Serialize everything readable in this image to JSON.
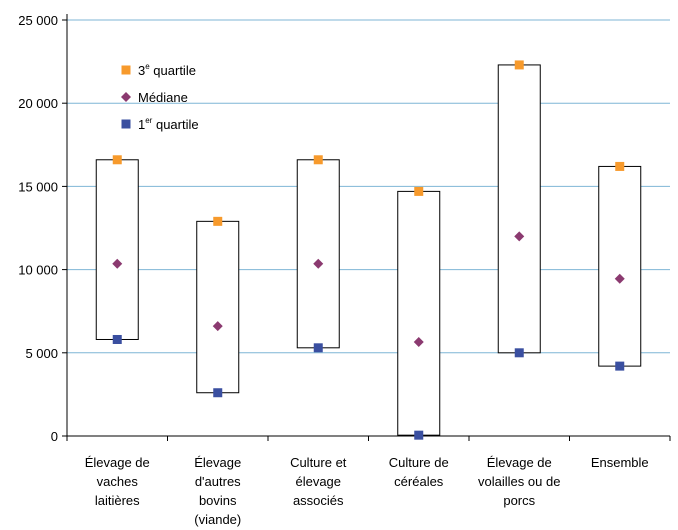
{
  "chart_data": {
    "type": "box",
    "categories": [
      [
        "Élevage de",
        "vaches",
        "laitières"
      ],
      [
        "Élevage",
        "d'autres",
        "bovins",
        "(viande)"
      ],
      [
        "Culture et",
        "élevage",
        "associés"
      ],
      [
        "Culture de",
        "céréales"
      ],
      [
        "Élevage de",
        "volailles ou de",
        "porcs"
      ],
      [
        "Ensemble"
      ]
    ],
    "series": [
      {
        "name": "3e quartile",
        "marker": "square",
        "color": "#f79a2c",
        "values": [
          16600,
          12900,
          16600,
          14700,
          22300,
          16200
        ]
      },
      {
        "name": "Médiane",
        "marker": "diamond",
        "color": "#8b3a70",
        "values": [
          10350,
          6600,
          10350,
          5650,
          12000,
          9450
        ]
      },
      {
        "name": "1er quartile",
        "marker": "square",
        "color": "#3a4fa0",
        "values": [
          5800,
          2600,
          5300,
          50,
          5000,
          4200
        ]
      }
    ],
    "legend": [
      {
        "base": "3",
        "sup": "e",
        "rest": " quartile"
      },
      {
        "base": "Médiane",
        "sup": "",
        "rest": ""
      },
      {
        "base": "1",
        "sup": "er",
        "rest": " quartile"
      }
    ],
    "yticks": [
      "25 000",
      "20 000",
      "15 000",
      "10 000",
      "5 000",
      "0"
    ],
    "ytick_values": [
      25000,
      20000,
      15000,
      10000,
      5000,
      0
    ],
    "ylim": [
      0,
      25000
    ],
    "grid": true,
    "gridline_color": "#7fb6d6",
    "legend_position": "top-left"
  }
}
